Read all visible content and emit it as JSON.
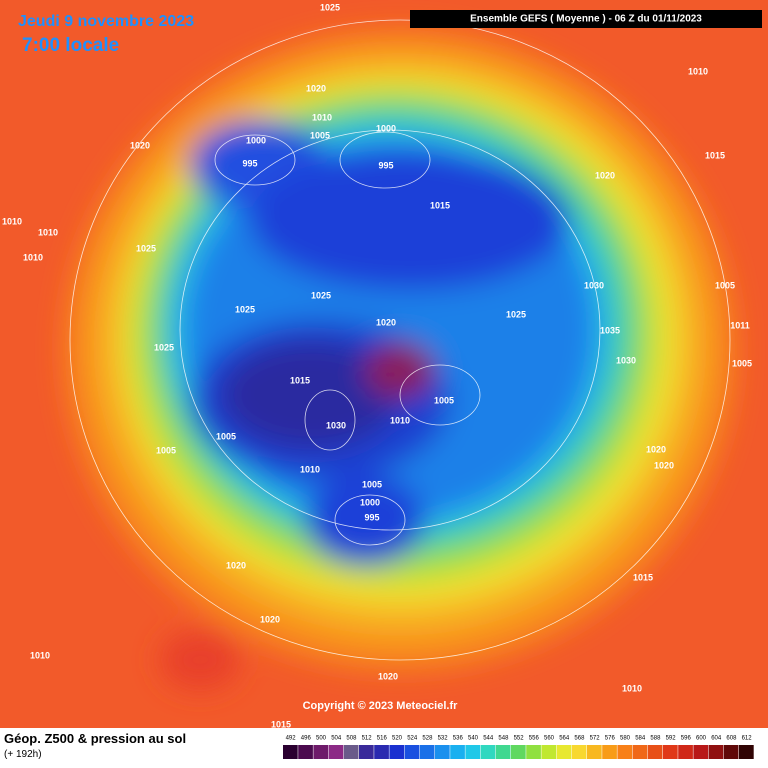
{
  "header": {
    "date": "Jeudi 9 novembre 2023",
    "time": "7:00 locale",
    "run": "Ensemble GEFS  ( Moyenne )  -  06 Z du 01/11/2023"
  },
  "pressure_labels": [
    "1025",
    "1010",
    "1020",
    "1010",
    "1005",
    "1000",
    "1020",
    "1000",
    "995",
    "995",
    "1015",
    "1020",
    "1015",
    "1010",
    "1010",
    "1010",
    "1025",
    "1030",
    "1005",
    "1025",
    "1025",
    "1025",
    "1020",
    "1035",
    "1011",
    "1025",
    "1030",
    "1005",
    "1015",
    "1005",
    "1010",
    "1030",
    "1005",
    "1020",
    "1020",
    "1005",
    "1010",
    "1005",
    "1000",
    "995",
    "1020",
    "1015",
    "1020",
    "1010",
    "1020",
    "1010",
    "1015"
  ],
  "copyright": "Copyright © 2023 Meteociel.fr",
  "footer": {
    "title": "Géop. Z500 & pression au sol",
    "lead": "(+ 192h)"
  },
  "colorbar": {
    "values": [
      492,
      496,
      500,
      504,
      508,
      512,
      516,
      520,
      524,
      528,
      532,
      536,
      540,
      544,
      548,
      552,
      556,
      560,
      564,
      568,
      572,
      576,
      580,
      584,
      588,
      592,
      596,
      600,
      604,
      608,
      612
    ],
    "colors": [
      "#2a0030",
      "#4b0a4e",
      "#6e1a6a",
      "#8c2a86",
      "#6a5a8a",
      "#3a2a9a",
      "#2a2ab0",
      "#1a30d0",
      "#1a50e0",
      "#1a70e8",
      "#1a90ee",
      "#1ab0f0",
      "#20c8e8",
      "#30d8c0",
      "#40d890",
      "#60d860",
      "#90e040",
      "#c0e830",
      "#e8e830",
      "#f8d830",
      "#f8b820",
      "#f89c18",
      "#f88018",
      "#f06818",
      "#e85018",
      "#e03818",
      "#d02818",
      "#b81818",
      "#901010",
      "#600808",
      "#300404"
    ]
  }
}
